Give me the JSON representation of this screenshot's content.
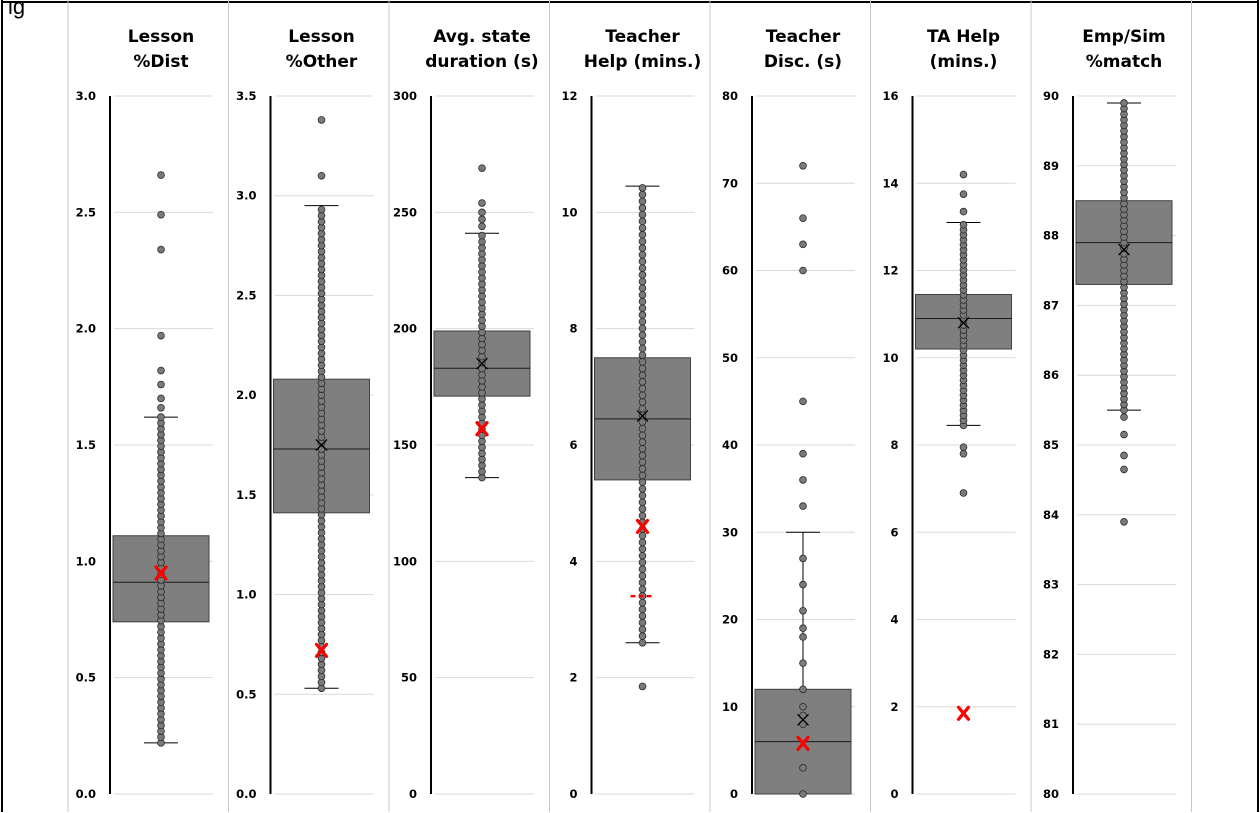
{
  "page": {
    "top_caption": "ig"
  },
  "colors": {
    "box_fill": "#7f7f7f",
    "box_stroke": "#404040",
    "point_fill": "#7a7a7a",
    "point_stroke": "#2b2b2b",
    "highlight": "#ff0000",
    "gridline": "#d9d9d9",
    "axis": "#000000",
    "background": "#ffffff"
  },
  "chart_data": [
    {
      "type": "box",
      "title": [
        "Lesson",
        "%Dist"
      ],
      "ylim": [
        0,
        3.0
      ],
      "ticks": [
        0,
        0.5,
        1,
        1.5,
        2,
        2.5,
        3
      ],
      "tick_labels": [
        "0.0",
        "0.5",
        "1.0",
        "1.5",
        "2.0",
        "2.5",
        "3.0"
      ],
      "whisker_low": 0.22,
      "q1": 0.74,
      "median": 0.91,
      "q3": 1.11,
      "whisker_high": 1.62,
      "mean": 0.95,
      "outliers": [
        1.66,
        1.7,
        1.76,
        1.82,
        1.97,
        2.34,
        2.49,
        2.66
      ],
      "point_step": 0.025,
      "highlight": {
        "value": 0.95,
        "marker": "x"
      }
    },
    {
      "type": "box",
      "title": [
        "Lesson",
        "%Other"
      ],
      "ylim": [
        0,
        3.5
      ],
      "ticks": [
        0,
        0.5,
        1,
        1.5,
        2,
        2.5,
        3,
        3.5
      ],
      "tick_labels": [
        "0.0",
        "0.5",
        "1.0",
        "1.5",
        "2.0",
        "2.5",
        "3.0",
        "3.5"
      ],
      "whisker_low": 0.53,
      "q1": 1.41,
      "median": 1.73,
      "q3": 2.08,
      "whisker_high": 2.95,
      "mean": 1.75,
      "outliers": [
        3.1,
        3.38
      ],
      "point_step": 0.03,
      "highlight": {
        "value": 0.72,
        "marker": "x"
      }
    },
    {
      "type": "box",
      "title": [
        "Avg. state",
        "duration (s)"
      ],
      "ylim": [
        0,
        300
      ],
      "ticks": [
        0,
        50,
        100,
        150,
        200,
        250,
        300
      ],
      "tick_labels": [
        "0",
        "50",
        "100",
        "150",
        "200",
        "250",
        "300"
      ],
      "whisker_low": 136,
      "q1": 171,
      "median": 183,
      "q3": 199,
      "whisker_high": 241,
      "mean": 185,
      "outliers": [
        244,
        247,
        250,
        254,
        269
      ],
      "point_step": 2.6,
      "highlight": {
        "value": 157,
        "marker": "x"
      }
    },
    {
      "type": "box",
      "title": [
        "Teacher",
        "Help (mins.)"
      ],
      "ylim": [
        0,
        12
      ],
      "ticks": [
        0,
        2,
        4,
        6,
        8,
        10,
        12
      ],
      "tick_labels": [
        "0",
        "2",
        "4",
        "6",
        "8",
        "10",
        "12"
      ],
      "whisker_low": 2.6,
      "q1": 5.4,
      "median": 6.45,
      "q3": 7.5,
      "whisker_high": 10.45,
      "mean": 6.5,
      "outliers": [
        1.85
      ],
      "point_step": 0.115,
      "highlight": {
        "value": 4.6,
        "marker": "x"
      },
      "reference_line": 3.4
    },
    {
      "type": "box",
      "title": [
        "Teacher",
        "Disc. (s)"
      ],
      "ylim": [
        0,
        80
      ],
      "ticks": [
        0,
        10,
        20,
        30,
        40,
        50,
        60,
        70,
        80
      ],
      "tick_labels": [
        "0",
        "10",
        "20",
        "30",
        "40",
        "50",
        "60",
        "70",
        "80"
      ],
      "whisker_low": 0,
      "q1": 0,
      "median": 6,
      "q3": 12,
      "whisker_high": 30,
      "mean": 8.5,
      "outliers": [
        33,
        36,
        39,
        45,
        60,
        63,
        66,
        72
      ],
      "points": [
        0,
        3,
        8,
        9,
        10,
        12,
        15,
        18,
        19,
        21,
        24,
        27
      ],
      "highlight": {
        "value": 5.8,
        "marker": "x"
      }
    },
    {
      "type": "box",
      "title": [
        "TA Help",
        "(mins.)"
      ],
      "ylim": [
        0,
        16
      ],
      "ticks": [
        0,
        2,
        4,
        6,
        8,
        10,
        12,
        14,
        16
      ],
      "tick_labels": [
        "0",
        "2",
        "4",
        "6",
        "8",
        "10",
        "12",
        "14",
        "16"
      ],
      "whisker_low": 8.45,
      "q1": 10.2,
      "median": 10.9,
      "q3": 11.45,
      "whisker_high": 13.1,
      "mean": 10.8,
      "outliers": [
        6.9,
        7.8,
        7.95,
        13.35,
        13.75,
        14.2
      ],
      "point_step": 0.115,
      "highlight": {
        "value": 1.85,
        "marker": "x"
      }
    },
    {
      "type": "box",
      "title": [
        "Emp/Sim",
        "%match"
      ],
      "ylim": [
        80,
        90
      ],
      "ticks": [
        80,
        81,
        82,
        83,
        84,
        85,
        86,
        87,
        88,
        89,
        90
      ],
      "tick_labels": [
        "80",
        "81",
        "82",
        "83",
        "84",
        "85",
        "86",
        "87",
        "88",
        "89",
        "90"
      ],
      "whisker_low": 85.5,
      "q1": 87.3,
      "median": 87.9,
      "q3": 88.5,
      "whisker_high": 89.9,
      "mean": 87.8,
      "outliers": [
        83.9,
        84.65,
        84.85,
        85.15,
        85.4
      ],
      "point_step": 0.08
    }
  ]
}
